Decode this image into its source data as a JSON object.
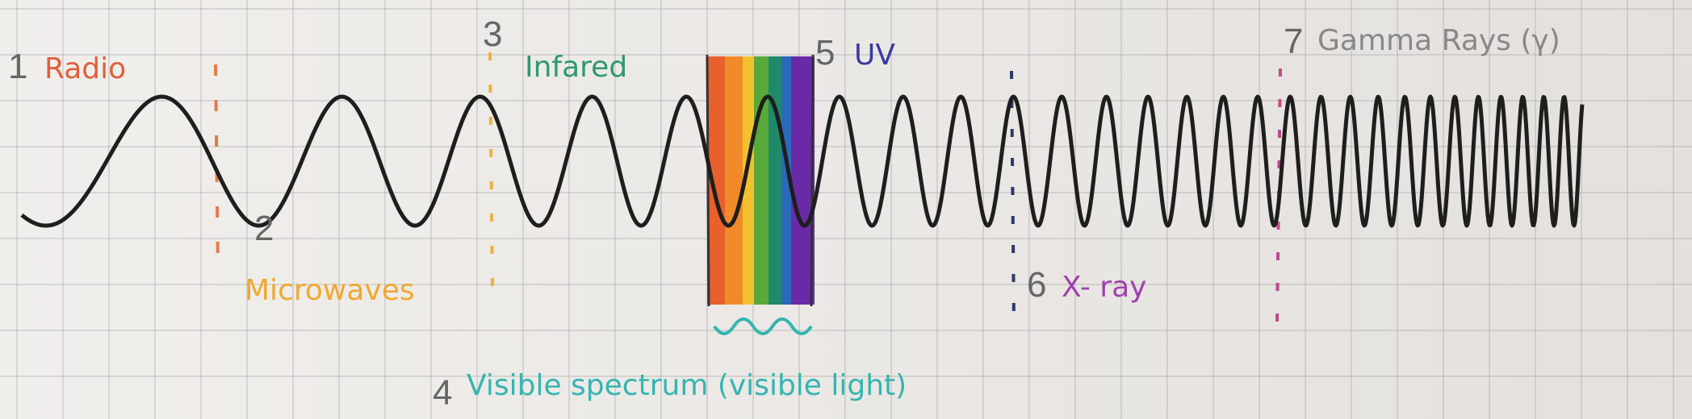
{
  "bands": [
    {
      "number": "1",
      "label": "Radio"
    },
    {
      "number": "2",
      "label": "Microwaves"
    },
    {
      "number": "3",
      "label": "Infared"
    },
    {
      "number": "4",
      "label": "Visible spectrum (visible light)"
    },
    {
      "number": "5",
      "label": "UV"
    },
    {
      "number": "6",
      "label": "X- ray"
    },
    {
      "number": "7",
      "label": "Gamma Rays (γ)"
    }
  ]
}
